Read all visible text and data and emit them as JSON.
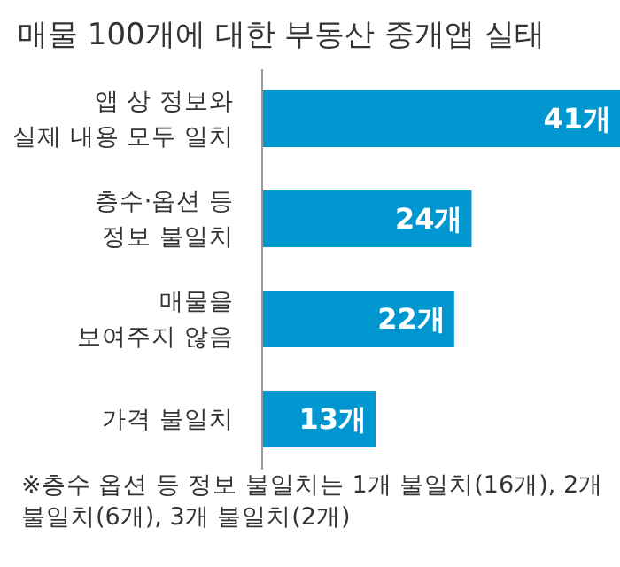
{
  "chart_data": {
    "type": "bar",
    "orientation": "horizontal",
    "title": "매물 100개에 대한 부동산 중개앱 실태",
    "categories": [
      "앱 상 정보와\n실제 내용 모두 일치",
      "층수·옵션 등\n정보 불일치",
      "매물을\n보여주지 않음",
      "가격 불일치"
    ],
    "values": [
      41,
      24,
      22,
      13
    ],
    "value_labels": [
      "41개",
      "24개",
      "22개",
      "13개"
    ],
    "color": "#0096d0",
    "annotations": [
      "※층수 옵션 등 정보 불일치는 1개 불일치(16개), 2개 불일치(6개), 3개 불일치(2개)"
    ]
  }
}
